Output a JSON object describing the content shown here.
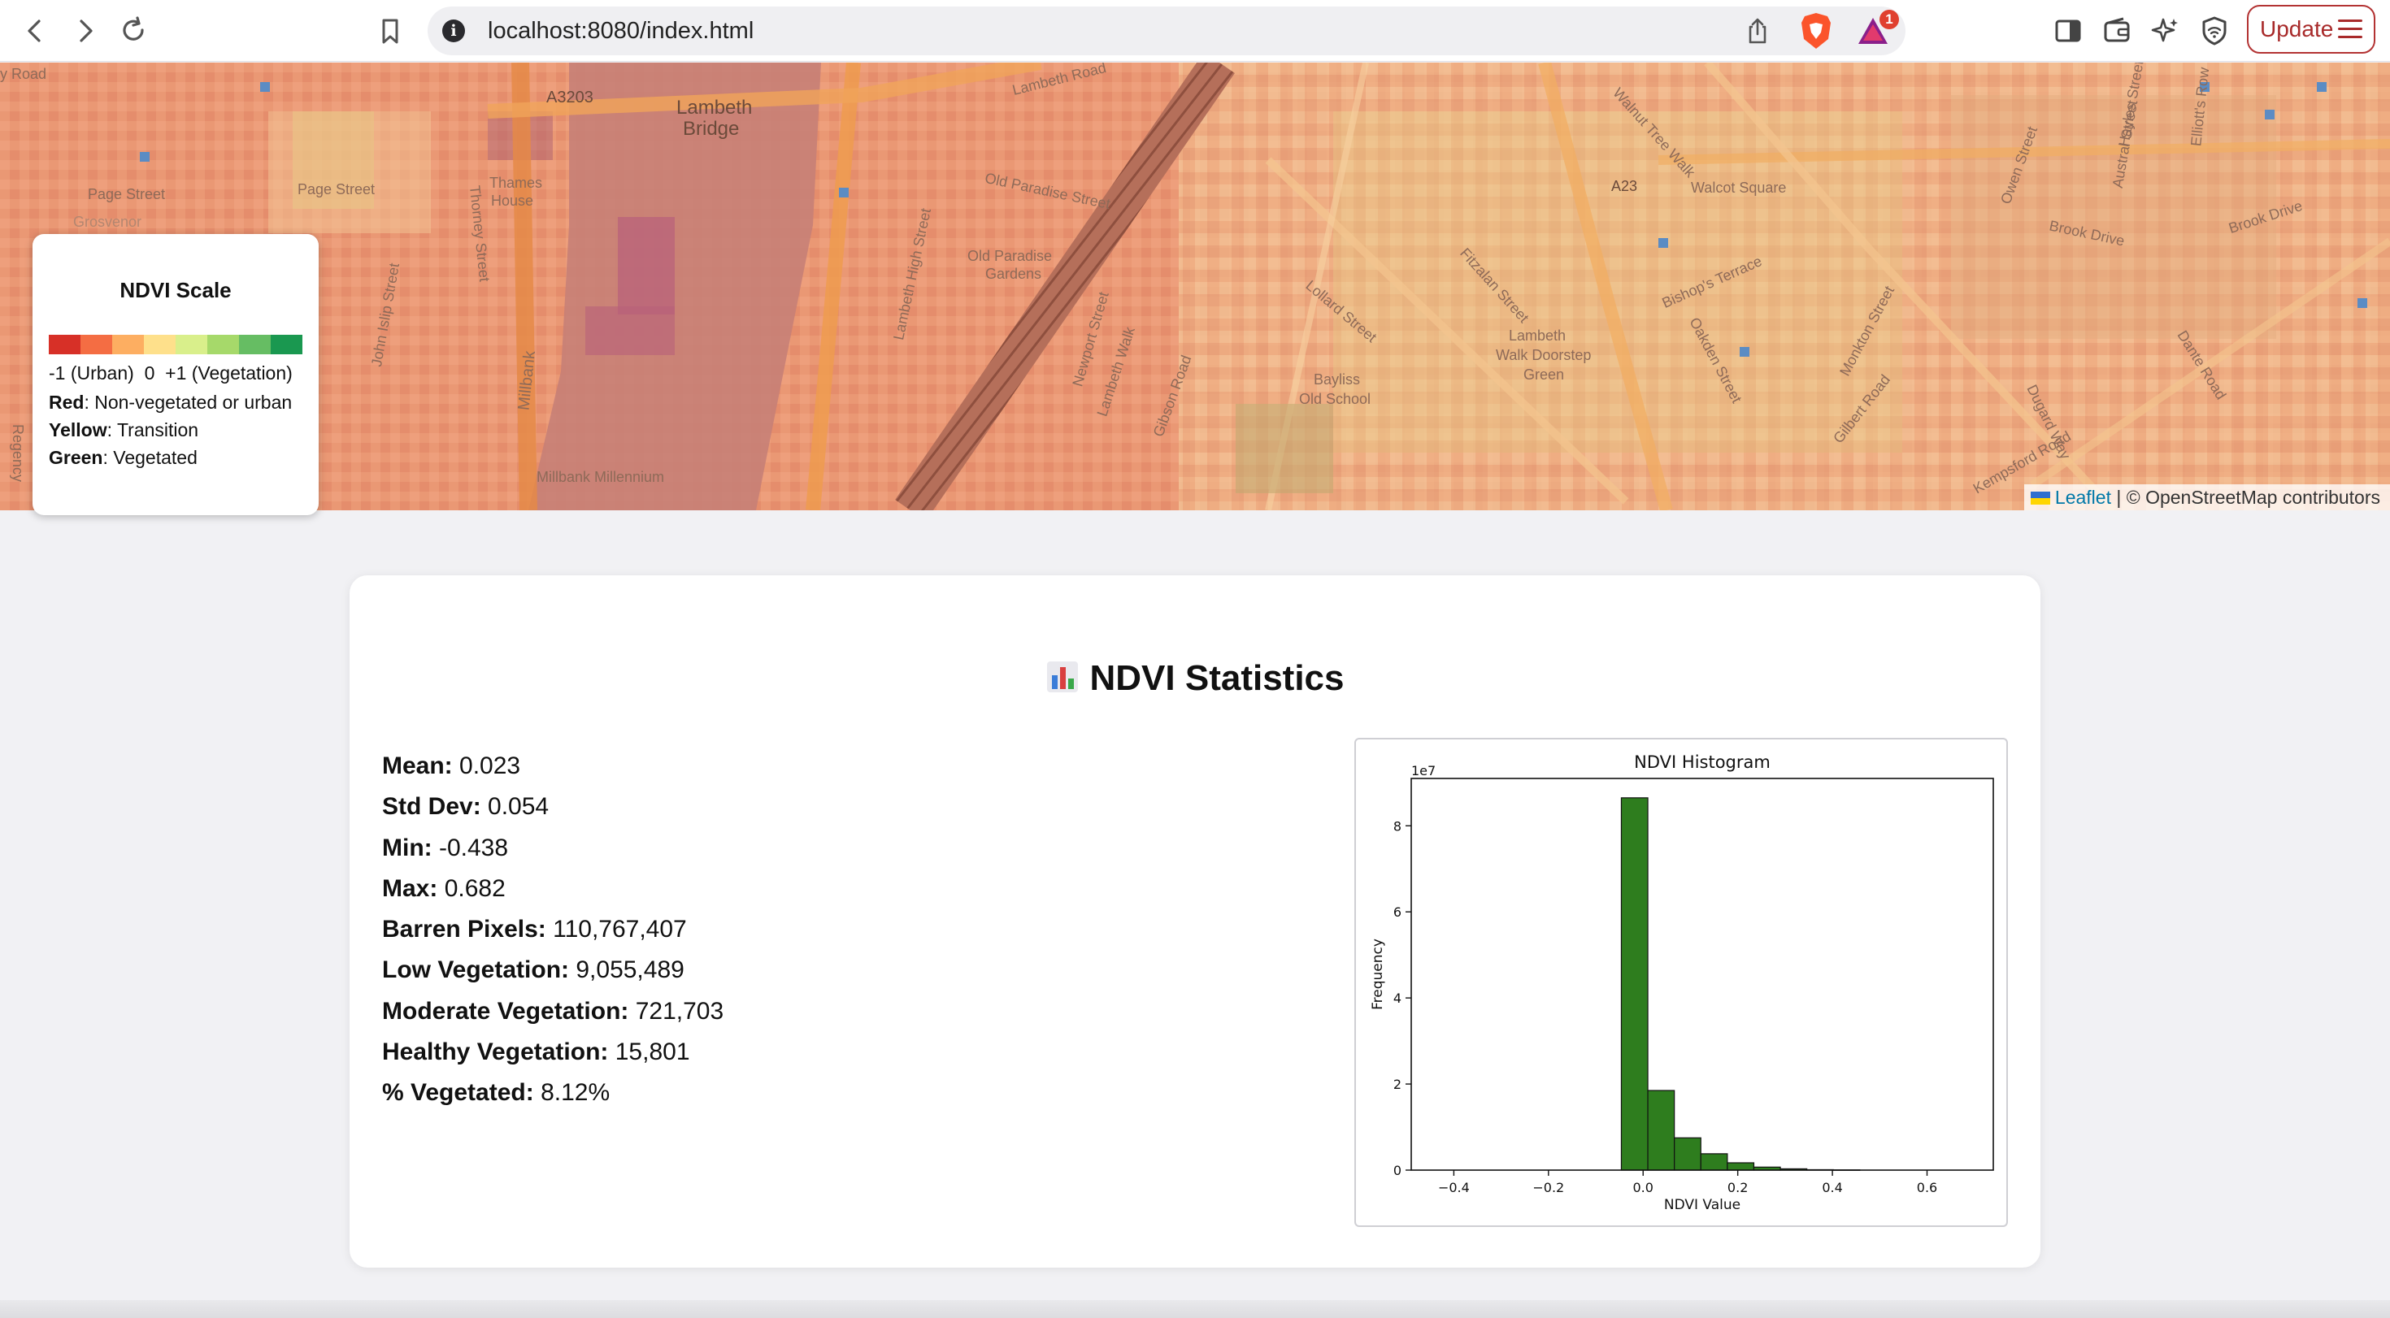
{
  "browser": {
    "url": "localhost:8080/index.html",
    "update_label": "Update",
    "rewards_badge": "1"
  },
  "map": {
    "labels": {
      "lambeth_bridge_1": "Lambeth",
      "lambeth_bridge_2": "Bridge",
      "a3203": "A3203",
      "a23": "A23",
      "page_street_1": "Page Street",
      "page_street_2": "Page Street",
      "thames_house_1": "Thames",
      "thames_house_2": "House",
      "thorney_street": "Thorney Street",
      "john_islip": "John Islip Street",
      "millbank": "Millbank",
      "millbank_millennium": "Millbank Millennium",
      "old_paradise_street": "Old Paradise Street",
      "old_paradise_gardens_1": "Old Paradise",
      "old_paradise_gardens_2": "Gardens",
      "lambeth_high_street": "Lambeth High Street",
      "newport_street": "Newport Street",
      "lambeth_walk": "Lambeth Walk",
      "walnut_tree_walk": "Walnut Tree Walk",
      "walcot_square": "Walcot Square",
      "bishops_terrace": "Bishop's Terrace",
      "brook_drive": "Brook Drive",
      "brook_drive_2": "Brook Drive",
      "lambeth_walk_doorstep_1": "Lambeth",
      "lambeth_walk_doorstep_2": "Walk Doorstep",
      "lambeth_walk_doorstep_3": "Green",
      "bayliss_1": "Bayliss",
      "bayliss_2": "Old School",
      "lollard_street": "Lollard Street",
      "fitzalan_street": "Fitzalan Street",
      "monkton_street": "Monkton Street",
      "oakden_street": "Oakden Street",
      "gilbert_road": "Gilbert Road",
      "kempsford_road": "Kempsford Road",
      "dante_road": "Dante Road",
      "hayles_street": "Hayles Street",
      "elliotts_row": "Elliott's Row",
      "owen_street": "Owen Street",
      "austral_street": "Austral Street",
      "dugard_way": "Dugard Way",
      "gibson_road": "Gibson Road",
      "grosvenor": "Grosvenor",
      "regency": "Regency",
      "road_left": "y Road",
      "lambeth_road": "Lambeth Road"
    },
    "attribution": {
      "leaflet": "Leaflet",
      "separator": " | ",
      "osm": "© OpenStreetMap contributors"
    }
  },
  "legend": {
    "title": "NDVI Scale",
    "colors": [
      "#d73027",
      "#f46d43",
      "#fdae61",
      "#fee08b",
      "#d9ef8b",
      "#a6d96a",
      "#66bd63",
      "#1a9850"
    ],
    "scale_text": "-1 (Urban)  0  +1 (Vegetation)",
    "rows": [
      {
        "label": "Red",
        "text": ": Non-vegetated or urban"
      },
      {
        "label": "Yellow",
        "text": ": Transition"
      },
      {
        "label": "Green",
        "text": ": Vegetated"
      }
    ]
  },
  "stats": {
    "title": "NDVI Statistics",
    "items": [
      {
        "label": "Mean:",
        "value": "0.023"
      },
      {
        "label": "Std Dev:",
        "value": "0.054"
      },
      {
        "label": "Min:",
        "value": "-0.438"
      },
      {
        "label": "Max:",
        "value": "0.682"
      },
      {
        "label": "Barren Pixels:",
        "value": "110,767,407"
      },
      {
        "label": "Low Vegetation:",
        "value": "9,055,489"
      },
      {
        "label": "Moderate Vegetation:",
        "value": "721,703"
      },
      {
        "label": "Healthy Vegetation:",
        "value": "15,801"
      },
      {
        "label": "% Vegetated:",
        "value": "8.12%"
      }
    ]
  },
  "chart_data": {
    "type": "bar",
    "title": "NDVI Histogram",
    "xlabel": "NDVI Value",
    "ylabel": "Frequency",
    "y_multiplier": "1e7",
    "bar_color": "#2e7d1e",
    "xlim": [
      -0.49,
      0.74
    ],
    "ylim": [
      0,
      9.1
    ],
    "x_ticks": [
      -0.4,
      -0.2,
      0.0,
      0.2,
      0.4,
      0.6
    ],
    "x_tick_labels": [
      "−0.4",
      "−0.2",
      "0.0",
      "0.2",
      "0.4",
      "0.6"
    ],
    "y_ticks": [
      0,
      2,
      4,
      6,
      8
    ],
    "y_tick_labels": [
      "0",
      "2",
      "4",
      "6",
      "8"
    ],
    "bin_width": 0.056,
    "bin_starts": [
      -0.438,
      -0.382,
      -0.326,
      -0.27,
      -0.214,
      -0.158,
      -0.102,
      -0.046,
      0.01,
      0.066,
      0.122,
      0.178,
      0.234,
      0.29,
      0.346,
      0.402,
      0.458,
      0.514,
      0.57,
      0.626
    ],
    "values": [
      0.0,
      0.0,
      0.0,
      0.0,
      0.0,
      0.0,
      0.0,
      8.65,
      1.85,
      0.75,
      0.38,
      0.17,
      0.07,
      0.03,
      0.01,
      0.005,
      0.0,
      0.0,
      0.0,
      0.0
    ]
  }
}
